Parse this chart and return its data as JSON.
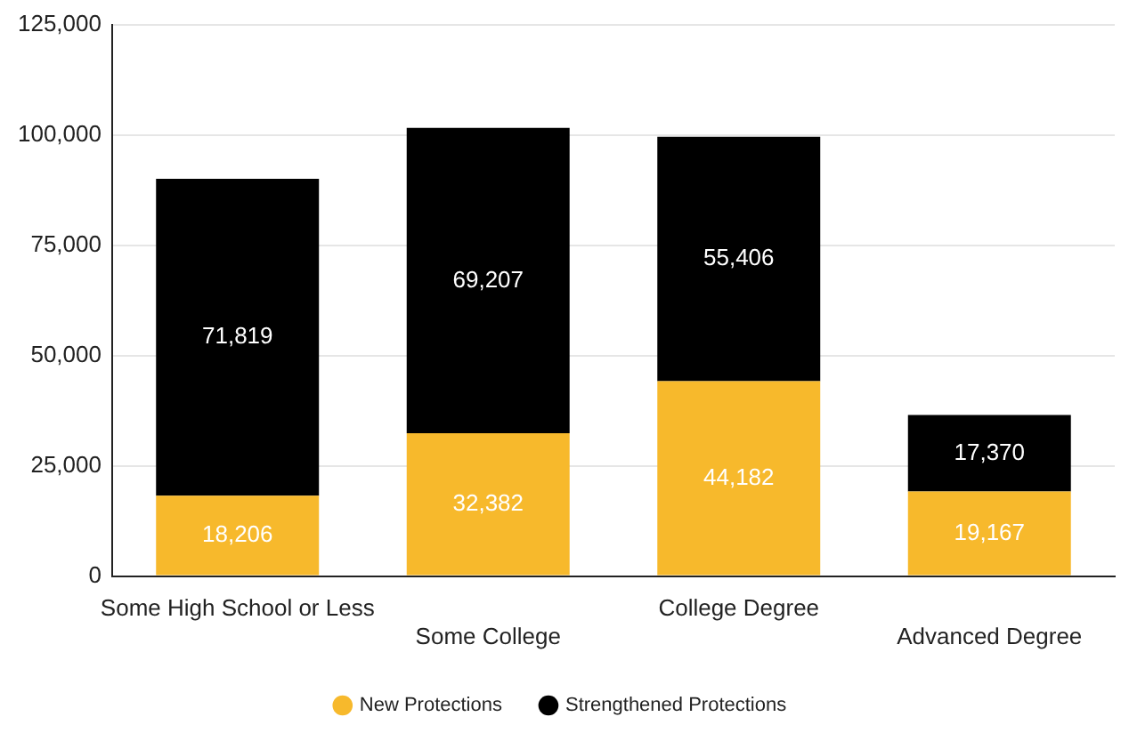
{
  "chart_data": {
    "type": "bar",
    "stacked": true,
    "categories": [
      "Some High School or Less",
      "Some College",
      "College Degree",
      "Advanced Degree"
    ],
    "series": [
      {
        "name": "New Protections",
        "color": "#f7b92c",
        "values": [
          18206,
          32382,
          44182,
          19167
        ],
        "value_labels": [
          "18,206",
          "32,382",
          "44,182",
          "19,167"
        ]
      },
      {
        "name": "Strengthened Protections",
        "color": "#000000",
        "values": [
          71819,
          69207,
          55406,
          17370
        ],
        "value_labels": [
          "71,819",
          "69,207",
          "55,406",
          "17,370"
        ]
      }
    ],
    "ylim": [
      0,
      125000
    ],
    "yticks": [
      {
        "value": 0,
        "label": "0"
      },
      {
        "value": 25000,
        "label": "25,000"
      },
      {
        "value": 50000,
        "label": "50,000"
      },
      {
        "value": 75000,
        "label": "75,000"
      },
      {
        "value": 100000,
        "label": "100,000"
      },
      {
        "value": 125000,
        "label": "125,000"
      }
    ],
    "grid": "y",
    "legend": "bottom"
  }
}
